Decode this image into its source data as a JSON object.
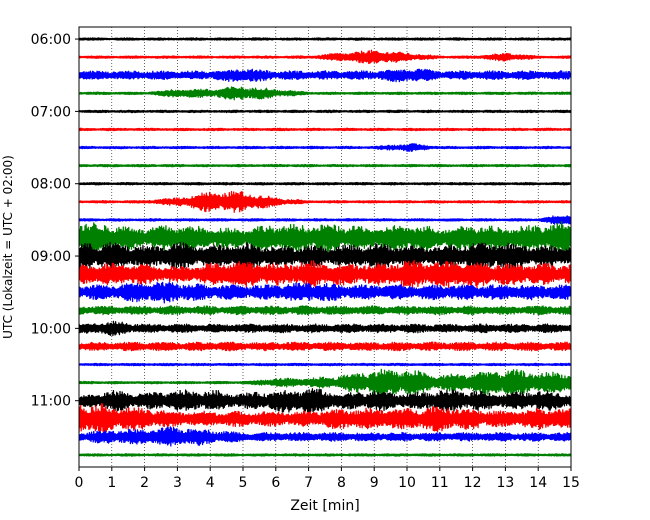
{
  "chart_data": {
    "type": "line",
    "title": "",
    "xlabel": "Zeit  [min]",
    "ylabel": "UTC (Lokalzeit = UTC + 02:00)",
    "xlim": [
      0,
      15
    ],
    "x_ticks": [
      "0",
      "1",
      "2",
      "3",
      "4",
      "5",
      "6",
      "7",
      "8",
      "9",
      "10",
      "11",
      "12",
      "13",
      "14",
      "15"
    ],
    "y_ticks": [
      "06:00",
      "07:00",
      "08:00",
      "09:00",
      "10:00",
      "11:00"
    ],
    "ylim": [
      "05:50",
      "11:55"
    ],
    "x_grid": true,
    "y_grid": false,
    "legend": "none",
    "trace_interval_min": 15,
    "trace_colors": [
      "#000000",
      "#ff0000",
      "#0000ff",
      "#008000"
    ],
    "traces": [
      {
        "start": "06:00",
        "color": "#000000",
        "activity": [
          1,
          1,
          1,
          1,
          1,
          1,
          1,
          1,
          1,
          1,
          1,
          1,
          1,
          1,
          1,
          1
        ]
      },
      {
        "start": "06:15",
        "color": "#ff0000",
        "activity": [
          1,
          1,
          1,
          1,
          1,
          1,
          1,
          1,
          2,
          3,
          2,
          1,
          1,
          2,
          1,
          1
        ]
      },
      {
        "start": "06:30",
        "color": "#0000ff",
        "activity": [
          2,
          2,
          2,
          2,
          2,
          3,
          2,
          2,
          2,
          2,
          3,
          2,
          2,
          2,
          2,
          2
        ]
      },
      {
        "start": "06:45",
        "color": "#008000",
        "activity": [
          1,
          1,
          1,
          2,
          2,
          3,
          2,
          1,
          1,
          1,
          1,
          1,
          1,
          1,
          1,
          1
        ]
      },
      {
        "start": "07:00",
        "color": "#000000",
        "activity": [
          1,
          1,
          1,
          1,
          1,
          1,
          1,
          1,
          1,
          1,
          1,
          1,
          1,
          1,
          1,
          1
        ]
      },
      {
        "start": "07:15",
        "color": "#ff0000",
        "activity": [
          1,
          1,
          1,
          1,
          1,
          1,
          1,
          1,
          1,
          1,
          1,
          1,
          1,
          1,
          1,
          1
        ]
      },
      {
        "start": "07:30",
        "color": "#0000ff",
        "activity": [
          1,
          1,
          1,
          1,
          1,
          1,
          1,
          1,
          1,
          1,
          2,
          1,
          1,
          1,
          1,
          1
        ]
      },
      {
        "start": "07:45",
        "color": "#008000",
        "activity": [
          1,
          1,
          1,
          1,
          1,
          1,
          1,
          1,
          1,
          1,
          1,
          1,
          1,
          1,
          1,
          1
        ]
      },
      {
        "start": "08:00",
        "color": "#000000",
        "activity": [
          1,
          1,
          1,
          1,
          1,
          1,
          1,
          1,
          1,
          1,
          1,
          1,
          1,
          1,
          1,
          1
        ]
      },
      {
        "start": "08:15",
        "color": "#ff0000",
        "activity": [
          1,
          1,
          1,
          2,
          4,
          4,
          2,
          1,
          1,
          1,
          1,
          1,
          1,
          1,
          1,
          1
        ]
      },
      {
        "start": "08:30",
        "color": "#0000ff",
        "activity": [
          1,
          1,
          1,
          1,
          1,
          1,
          1,
          1,
          1,
          1,
          1,
          1,
          1,
          1,
          1,
          3
        ]
      },
      {
        "start": "08:45",
        "color": "#008000",
        "activity": [
          6,
          5,
          4,
          5,
          4,
          4,
          5,
          5,
          5,
          4,
          5,
          4,
          5,
          4,
          5,
          6
        ]
      },
      {
        "start": "09:00",
        "color": "#000000",
        "activity": [
          5,
          5,
          4,
          5,
          4,
          5,
          4,
          4,
          4,
          5,
          4,
          4,
          5,
          5,
          4,
          4
        ]
      },
      {
        "start": "09:15",
        "color": "#ff0000",
        "activity": [
          4,
          4,
          4,
          3,
          4,
          5,
          4,
          5,
          4,
          4,
          5,
          5,
          5,
          4,
          4,
          4
        ]
      },
      {
        "start": "09:30",
        "color": "#0000ff",
        "activity": [
          3,
          3,
          4,
          4,
          3,
          3,
          3,
          4,
          3,
          3,
          3,
          3,
          3,
          3,
          3,
          3
        ]
      },
      {
        "start": "09:45",
        "color": "#008000",
        "activity": [
          2,
          2,
          2,
          2,
          2,
          2,
          2,
          2,
          2,
          2,
          2,
          2,
          2,
          2,
          2,
          2
        ]
      },
      {
        "start": "10:00",
        "color": "#000000",
        "activity": [
          2,
          3,
          2,
          2,
          2,
          2,
          2,
          2,
          2,
          2,
          2,
          2,
          2,
          2,
          2,
          2
        ]
      },
      {
        "start": "10:15",
        "color": "#ff0000",
        "activity": [
          2,
          2,
          2,
          2,
          2,
          2,
          2,
          2,
          2,
          2,
          2,
          2,
          2,
          2,
          2,
          2
        ]
      },
      {
        "start": "10:30",
        "color": "#0000ff",
        "activity": [
          1,
          1,
          1,
          1,
          1,
          1,
          1,
          1,
          1,
          1,
          1,
          1,
          1,
          1,
          1,
          1
        ]
      },
      {
        "start": "10:45",
        "color": "#008000",
        "activity": [
          1,
          1,
          1,
          1,
          1,
          1,
          2,
          2,
          3,
          5,
          5,
          3,
          4,
          5,
          4,
          4
        ]
      },
      {
        "start": "11:00",
        "color": "#000000",
        "activity": [
          2,
          4,
          3,
          4,
          4,
          3,
          4,
          5,
          3,
          4,
          3,
          4,
          4,
          3,
          4,
          3
        ]
      },
      {
        "start": "11:15",
        "color": "#ff0000",
        "activity": [
          6,
          5,
          4,
          3,
          3,
          3,
          3,
          3,
          4,
          4,
          4,
          5,
          4,
          3,
          4,
          4
        ]
      },
      {
        "start": "11:30",
        "color": "#0000ff",
        "activity": [
          2,
          3,
          3,
          4,
          3,
          2,
          2,
          2,
          2,
          2,
          2,
          2,
          2,
          2,
          2,
          2
        ]
      },
      {
        "start": "11:45",
        "color": "#008000",
        "activity": [
          1,
          1,
          1,
          1,
          1,
          1,
          1,
          1,
          1,
          1,
          1,
          1,
          1,
          1,
          1,
          1
        ]
      }
    ]
  }
}
